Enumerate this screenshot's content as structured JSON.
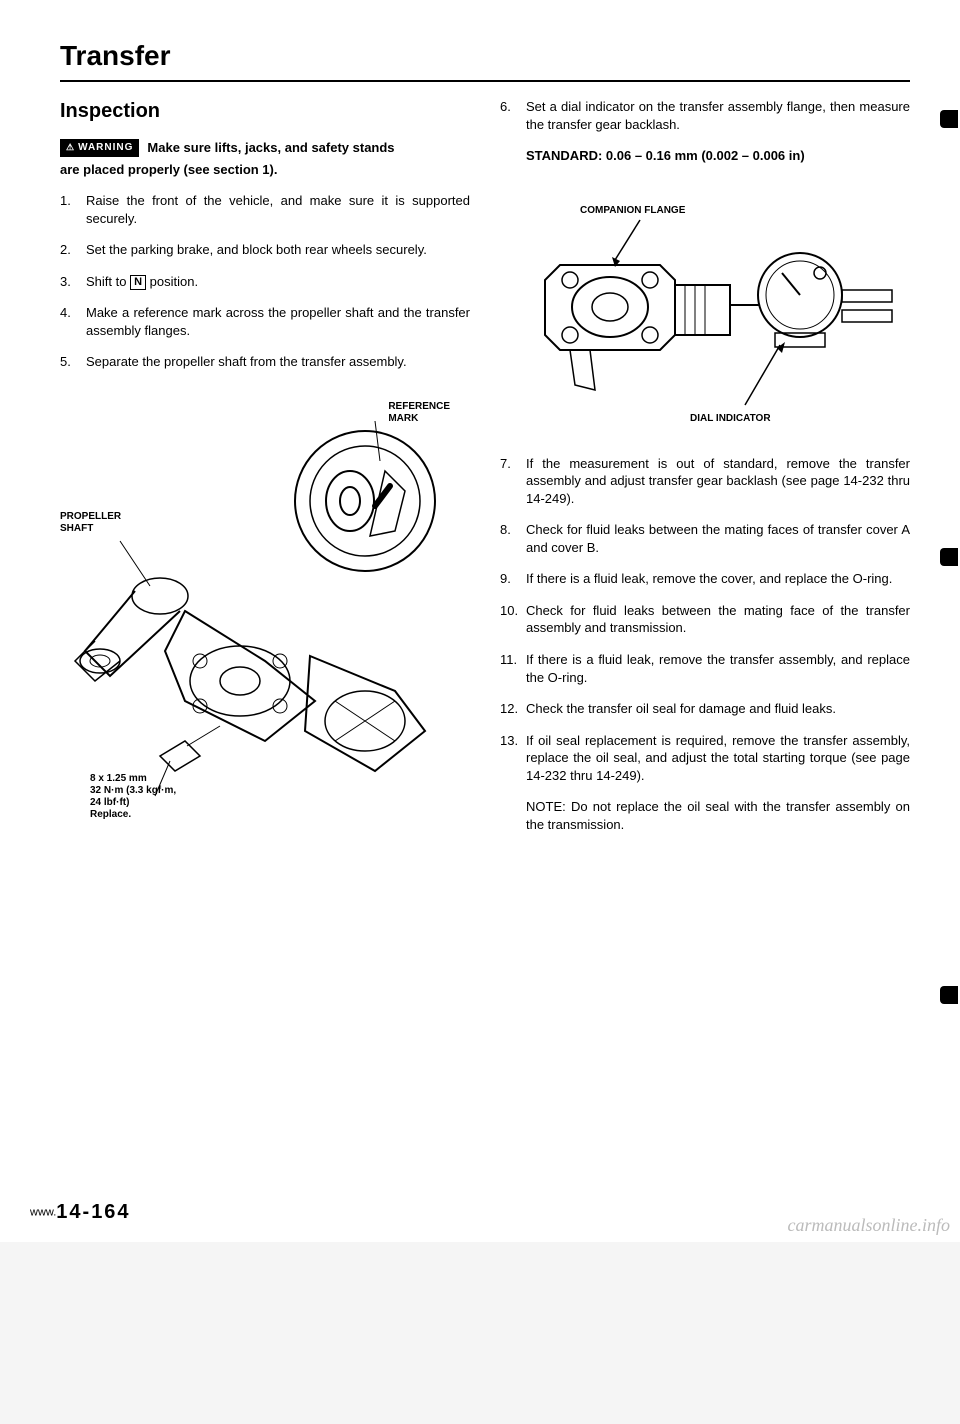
{
  "title": "Transfer",
  "section": "Inspection",
  "warning": {
    "badge": "WARNING",
    "line1": "Make sure lifts, jacks, and safety stands",
    "line2": "are placed properly (see section 1)."
  },
  "left_steps": [
    "Raise the front of the vehicle, and make sure it is supported securely.",
    "Set the parking brake, and block both rear wheels securely.",
    "Shift to __KEY__ position.",
    "Make a reference mark across the propeller shaft and the transfer assembly flanges.",
    "Separate the propeller shaft from the transfer assembly."
  ],
  "shift_key": "N",
  "figure1": {
    "label_ref": "REFERENCE\nMARK",
    "label_shaft": "PROPELLER\nSHAFT",
    "torque": "8 x 1.25 mm\n32 N·m (3.3 kgf·m,\n24 lbf·ft)\nReplace."
  },
  "right_first_start": 6,
  "right_steps_a": [
    "Set a dial indicator on the transfer assembly flange, then measure the transfer gear backlash."
  ],
  "standard": "STANDARD: 0.06 – 0.16 mm (0.002 – 0.006 in)",
  "figure2": {
    "label_flange": "COMPANION FLANGE",
    "label_dial": "DIAL INDICATOR"
  },
  "right_second_start": 7,
  "right_steps_b": [
    "If the measurement is out of standard, remove the transfer assembly and adjust transfer gear backlash (see page 14-232 thru 14-249).",
    "Check for fluid leaks between the mating faces of transfer cover A and cover B.",
    "If there is a fluid leak, remove the cover, and replace the O-ring.",
    "Check for fluid leaks between the mating face of the transfer assembly and transmission.",
    "If there is a fluid leak, remove the transfer assembly, and replace the O-ring.",
    "Check the transfer oil seal for damage and fluid leaks.",
    "If oil seal replacement is required, remove the transfer assembly, replace the oil seal, and adjust the total starting torque (see page 14-232 thru 14-249)."
  ],
  "note": "NOTE: Do not replace the oil seal with the transfer assembly on the transmission.",
  "page_number": "14-164",
  "watermark_left": "www.",
  "watermark_right": "carmanualsonline.info",
  "colors": {
    "text": "#000000",
    "bg": "#ffffff",
    "watermark": "#bbbbbb"
  }
}
